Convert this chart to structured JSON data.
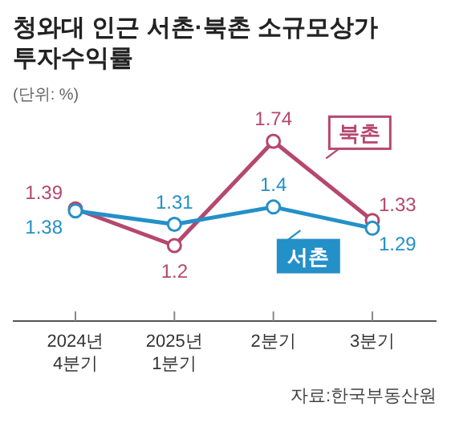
{
  "chart_data": {
    "type": "line",
    "title": "청와대 인근 서촌·북촌 소규모상가\n투자수익률",
    "subtitle": "(단위: %)",
    "annotations": [
      "자료:한국부동산원"
    ],
    "categories": [
      "2024년\n4분기",
      "2025년\n1분기",
      "2분기",
      "3분기"
    ],
    "series": [
      {
        "name": "북촌",
        "color": "#b5486f",
        "values": [
          1.39,
          1.2,
          1.74,
          1.33
        ]
      },
      {
        "name": "서촌",
        "color": "#2490c8",
        "values": [
          1.38,
          1.31,
          1.4,
          1.29
        ]
      }
    ],
    "data_labels": true,
    "marker": "circle"
  }
}
